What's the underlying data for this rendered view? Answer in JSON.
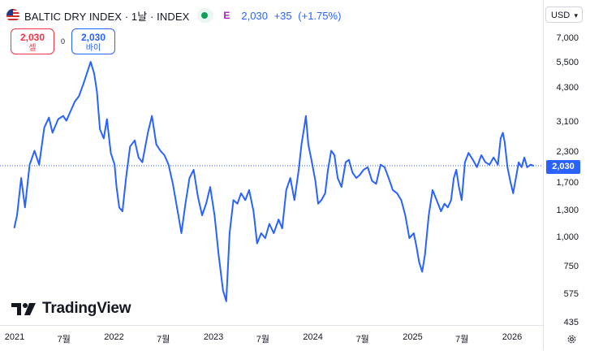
{
  "header": {
    "title": "BALTIC DRY INDEX · 1날 · INDEX",
    "badge": "E",
    "last": "2,030",
    "change": "+35",
    "change_pct": "(+1.75%)",
    "accent": "#2962ff"
  },
  "trade": {
    "sell_price": "2,030",
    "sell_label": "셀",
    "spread": "0",
    "buy_price": "2,030",
    "buy_label": "바이"
  },
  "currency": {
    "label": "USD",
    "chevron": "▾"
  },
  "branding": {
    "logo": "TradingView"
  },
  "chart_data": {
    "type": "line",
    "scale": "log",
    "grid": false,
    "legend": "none",
    "series_color": "#2962ff",
    "last_value": 2030,
    "last_label": "2,030",
    "y_ticks": [
      {
        "value": 7000,
        "label": "7,000"
      },
      {
        "value": 5500,
        "label": "5,500"
      },
      {
        "value": 4300,
        "label": "4,300"
      },
      {
        "value": 3100,
        "label": "3,100"
      },
      {
        "value": 2300,
        "label": "2,300"
      },
      {
        "value": 1700,
        "label": "1,700"
      },
      {
        "value": 1300,
        "label": "1,300"
      },
      {
        "value": 1000,
        "label": "1,000"
      },
      {
        "value": 750,
        "label": "750"
      },
      {
        "value": 575,
        "label": "575"
      },
      {
        "value": 435,
        "label": "435"
      }
    ],
    "x_ticks": [
      {
        "date": "2021-01-01",
        "label": "2021"
      },
      {
        "date": "2021-07-01",
        "label": "7월"
      },
      {
        "date": "2022-01-01",
        "label": "2022"
      },
      {
        "date": "2022-07-01",
        "label": "7월"
      },
      {
        "date": "2023-01-01",
        "label": "2023"
      },
      {
        "date": "2023-07-01",
        "label": "7월"
      },
      {
        "date": "2024-01-01",
        "label": "2024"
      },
      {
        "date": "2024-07-01",
        "label": "7월"
      },
      {
        "date": "2025-01-01",
        "label": "2025"
      },
      {
        "date": "2025-07-01",
        "label": "7월"
      },
      {
        "date": "2026-01-01",
        "label": "2026"
      }
    ],
    "points": [
      [
        "2020-12-31",
        1110
      ],
      [
        "2021-01-10",
        1250
      ],
      [
        "2021-01-25",
        1800
      ],
      [
        "2021-02-08",
        1350
      ],
      [
        "2021-02-25",
        2050
      ],
      [
        "2021-03-15",
        2350
      ],
      [
        "2021-04-01",
        2050
      ],
      [
        "2021-04-20",
        2950
      ],
      [
        "2021-05-07",
        3250
      ],
      [
        "2021-05-20",
        2800
      ],
      [
        "2021-06-10",
        3200
      ],
      [
        "2021-06-28",
        3300
      ],
      [
        "2021-07-10",
        3150
      ],
      [
        "2021-07-25",
        3450
      ],
      [
        "2021-08-10",
        3800
      ],
      [
        "2021-08-25",
        4000
      ],
      [
        "2021-09-10",
        4500
      ],
      [
        "2021-09-22",
        4950
      ],
      [
        "2021-10-07",
        5600
      ],
      [
        "2021-10-20",
        5000
      ],
      [
        "2021-10-30",
        4200
      ],
      [
        "2021-11-10",
        2900
      ],
      [
        "2021-11-24",
        2650
      ],
      [
        "2021-12-06",
        3200
      ],
      [
        "2021-12-20",
        2300
      ],
      [
        "2022-01-03",
        2050
      ],
      [
        "2022-01-10",
        1650
      ],
      [
        "2022-01-20",
        1350
      ],
      [
        "2022-02-01",
        1300
      ],
      [
        "2022-02-14",
        1800
      ],
      [
        "2022-03-01",
        2450
      ],
      [
        "2022-03-18",
        2600
      ],
      [
        "2022-04-01",
        2200
      ],
      [
        "2022-04-15",
        2100
      ],
      [
        "2022-05-05",
        2800
      ],
      [
        "2022-05-20",
        3300
      ],
      [
        "2022-06-05",
        2500
      ],
      [
        "2022-06-20",
        2350
      ],
      [
        "2022-07-05",
        2250
      ],
      [
        "2022-07-20",
        2050
      ],
      [
        "2022-08-05",
        1700
      ],
      [
        "2022-08-25",
        1250
      ],
      [
        "2022-09-05",
        1050
      ],
      [
        "2022-09-20",
        1400
      ],
      [
        "2022-10-05",
        1800
      ],
      [
        "2022-10-20",
        1950
      ],
      [
        "2022-11-05",
        1500
      ],
      [
        "2022-11-20",
        1250
      ],
      [
        "2022-12-05",
        1400
      ],
      [
        "2022-12-20",
        1650
      ],
      [
        "2023-01-05",
        1250
      ],
      [
        "2023-01-20",
        850
      ],
      [
        "2023-02-05",
        600
      ],
      [
        "2023-02-17",
        540
      ],
      [
        "2023-03-01",
        1050
      ],
      [
        "2023-03-15",
        1450
      ],
      [
        "2023-03-30",
        1400
      ],
      [
        "2023-04-12",
        1550
      ],
      [
        "2023-04-28",
        1450
      ],
      [
        "2023-05-12",
        1600
      ],
      [
        "2023-05-28",
        1300
      ],
      [
        "2023-06-10",
        950
      ],
      [
        "2023-06-25",
        1050
      ],
      [
        "2023-07-10",
        1000
      ],
      [
        "2023-07-25",
        1150
      ],
      [
        "2023-08-10",
        1050
      ],
      [
        "2023-08-28",
        1200
      ],
      [
        "2023-09-10",
        1100
      ],
      [
        "2023-09-25",
        1600
      ],
      [
        "2023-10-10",
        1800
      ],
      [
        "2023-10-25",
        1450
      ],
      [
        "2023-11-10",
        1950
      ],
      [
        "2023-11-20",
        2500
      ],
      [
        "2023-12-01",
        3000
      ],
      [
        "2023-12-06",
        3300
      ],
      [
        "2023-12-15",
        2500
      ],
      [
        "2023-12-28",
        2100
      ],
      [
        "2024-01-10",
        1750
      ],
      [
        "2024-01-20",
        1400
      ],
      [
        "2024-02-01",
        1450
      ],
      [
        "2024-02-15",
        1550
      ],
      [
        "2024-02-25",
        1950
      ],
      [
        "2024-03-08",
        2350
      ],
      [
        "2024-03-20",
        2250
      ],
      [
        "2024-04-01",
        1800
      ],
      [
        "2024-04-15",
        1650
      ],
      [
        "2024-04-30",
        2100
      ],
      [
        "2024-05-12",
        2150
      ],
      [
        "2024-05-25",
        1900
      ],
      [
        "2024-06-08",
        1800
      ],
      [
        "2024-06-20",
        1850
      ],
      [
        "2024-07-05",
        1950
      ],
      [
        "2024-07-20",
        2000
      ],
      [
        "2024-08-05",
        1750
      ],
      [
        "2024-08-20",
        1700
      ],
      [
        "2024-09-05",
        2050
      ],
      [
        "2024-09-20",
        2000
      ],
      [
        "2024-10-05",
        1800
      ],
      [
        "2024-10-20",
        1600
      ],
      [
        "2024-11-05",
        1550
      ],
      [
        "2024-11-20",
        1450
      ],
      [
        "2024-12-05",
        1250
      ],
      [
        "2024-12-20",
        1000
      ],
      [
        "2025-01-05",
        1050
      ],
      [
        "2025-01-15",
        920
      ],
      [
        "2025-01-25",
        790
      ],
      [
        "2025-02-05",
        720
      ],
      [
        "2025-02-15",
        850
      ],
      [
        "2025-03-01",
        1250
      ],
      [
        "2025-03-15",
        1600
      ],
      [
        "2025-03-30",
        1450
      ],
      [
        "2025-04-15",
        1300
      ],
      [
        "2025-04-28",
        1400
      ],
      [
        "2025-05-10",
        1350
      ],
      [
        "2025-05-22",
        1450
      ],
      [
        "2025-06-01",
        1800
      ],
      [
        "2025-06-10",
        1950
      ],
      [
        "2025-06-20",
        1650
      ],
      [
        "2025-06-30",
        1450
      ],
      [
        "2025-07-12",
        2100
      ],
      [
        "2025-07-25",
        2300
      ],
      [
        "2025-08-10",
        2150
      ],
      [
        "2025-08-25",
        2000
      ],
      [
        "2025-09-10",
        2250
      ],
      [
        "2025-09-25",
        2100
      ],
      [
        "2025-10-10",
        2050
      ],
      [
        "2025-10-25",
        2200
      ],
      [
        "2025-11-10",
        2050
      ],
      [
        "2025-11-20",
        2650
      ],
      [
        "2025-11-28",
        2800
      ],
      [
        "2025-12-05",
        2550
      ],
      [
        "2025-12-15",
        2000
      ],
      [
        "2025-12-25",
        1750
      ],
      [
        "2026-01-05",
        1550
      ],
      [
        "2026-01-15",
        1800
      ],
      [
        "2026-01-25",
        2100
      ],
      [
        "2026-02-05",
        2000
      ],
      [
        "2026-02-15",
        2200
      ],
      [
        "2026-02-25",
        2000
      ],
      [
        "2026-03-10",
        2050
      ],
      [
        "2026-03-20",
        2030
      ]
    ]
  }
}
